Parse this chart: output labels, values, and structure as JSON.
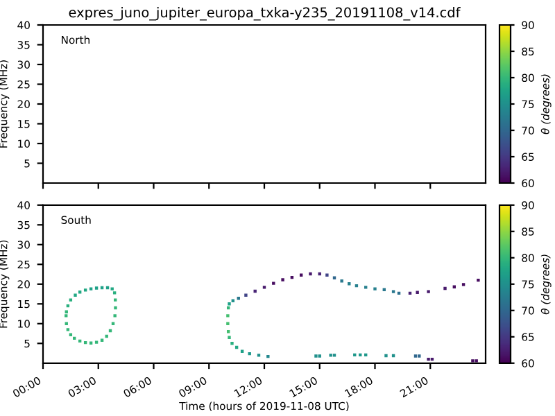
{
  "chart_data": [
    {
      "type": "scatter",
      "title": "expres_juno_jupiter_europa_txka-y235_20191108_v14.cdf",
      "ylabel": "Frequency (MHz)",
      "clabel": "θ (degrees)",
      "annotations": [
        "North"
      ],
      "grid": false,
      "legend": false,
      "tick_labels": "y",
      "xlim": [
        0,
        24
      ],
      "xticks": [
        {
          "value": 0,
          "label": null
        },
        {
          "value": 3,
          "label": null
        },
        {
          "value": 6,
          "label": null
        },
        {
          "value": 9,
          "label": null
        },
        {
          "value": 12,
          "label": null
        },
        {
          "value": 15,
          "label": null
        },
        {
          "value": 18,
          "label": null
        },
        {
          "value": 21,
          "label": null
        }
      ],
      "ylim": [
        0,
        40
      ],
      "yticks": [
        5,
        10,
        15,
        20,
        25,
        30,
        35,
        40
      ],
      "clim": [
        60,
        90
      ],
      "cticks": [
        60,
        65,
        70,
        75,
        80,
        85,
        90
      ]
    },
    {
      "type": "scatter",
      "xlabel": "Time (hours of 2019-11-08 UTC)",
      "ylabel": "Frequency (MHz)",
      "clabel": "θ (degrees)",
      "annotations": [
        "South"
      ],
      "marker": "square",
      "grid": false,
      "legend": false,
      "x": [
        1.25,
        1.27,
        1.35,
        1.5,
        1.7,
        2.0,
        2.3,
        2.6,
        2.9,
        3.2,
        3.45,
        3.65,
        3.8,
        3.9,
        3.93,
        3.92,
        3.88,
        3.75,
        3.5,
        3.2,
        2.9,
        2.6,
        2.3,
        2.0,
        1.75,
        1.5,
        1.35,
        1.27,
        10.1,
        10.05,
        10.02,
        10.02,
        10.05,
        10.1,
        10.25,
        10.5,
        10.8,
        11.2,
        11.7,
        12.2,
        10.3,
        10.6,
        11.0,
        11.5,
        12.0,
        12.5,
        13.0,
        13.5,
        14.0,
        14.5,
        15.0,
        15.4,
        15.8,
        16.2,
        16.6,
        17.0,
        17.5,
        18.0,
        18.5,
        19.0,
        19.3,
        19.9,
        20.3,
        20.9,
        21.8,
        22.3,
        22.8,
        23.6,
        14.8,
        15.0,
        15.6,
        15.8,
        16.9,
        17.2,
        17.5,
        18.6,
        19.0,
        20.2,
        20.4,
        20.9,
        21.1,
        23.3,
        23.5
      ],
      "values": [
        12,
        10,
        8.5,
        7.2,
        6.3,
        5.6,
        5.2,
        5.1,
        5.3,
        5.8,
        6.8,
        8.2,
        10,
        12,
        14,
        16,
        17.8,
        18.8,
        19.1,
        19.1,
        19.0,
        18.8,
        18.5,
        18.0,
        17.2,
        16,
        14.5,
        13,
        15,
        14,
        12,
        10,
        8,
        6.5,
        5,
        4,
        3,
        2.4,
        2.0,
        1.7,
        15.8,
        16.4,
        17.2,
        18.2,
        19.2,
        20.2,
        21.1,
        21.7,
        22.3,
        22.6,
        22.6,
        22.3,
        21.6,
        20.8,
        20.1,
        19.6,
        19.2,
        18.8,
        18.6,
        18.1,
        17.7,
        17.7,
        17.9,
        18.1,
        18.9,
        19.3,
        19.9,
        21.0,
        1.8,
        1.8,
        2.0,
        2.0,
        2.1,
        2.1,
        2.1,
        1.9,
        1.9,
        1.8,
        1.8,
        1.0,
        1.0,
        0.6,
        0.6
      ],
      "cvalues": [
        80,
        80,
        80,
        80,
        80,
        80,
        80,
        80,
        80,
        80,
        80,
        80,
        80,
        80,
        80,
        80,
        79,
        78,
        77,
        77,
        77,
        77,
        78,
        78,
        78,
        79,
        79,
        80,
        77,
        80,
        81,
        81,
        81,
        80,
        79,
        78,
        77,
        76,
        75,
        74,
        75,
        72,
        66,
        63,
        62,
        61,
        61,
        61,
        61,
        62,
        63,
        66,
        70,
        72,
        73,
        73,
        73,
        73,
        72,
        72,
        71,
        63,
        62,
        62,
        62,
        61,
        61,
        61,
        75,
        75,
        75,
        75,
        76,
        76,
        76,
        75,
        75,
        70,
        70,
        62,
        62,
        61,
        61
      ],
      "xlim": [
        0,
        24
      ],
      "xticks": [
        {
          "value": 0,
          "label": "00:00"
        },
        {
          "value": 3,
          "label": "03:00"
        },
        {
          "value": 6,
          "label": "06:00"
        },
        {
          "value": 9,
          "label": "09:00"
        },
        {
          "value": 12,
          "label": "12:00"
        },
        {
          "value": 15,
          "label": "15:00"
        },
        {
          "value": 18,
          "label": "18:00"
        },
        {
          "value": 21,
          "label": "21:00"
        }
      ],
      "ylim": [
        0,
        40
      ],
      "yticks": [
        5,
        10,
        15,
        20,
        25,
        30,
        35,
        40
      ],
      "clim": [
        60,
        90
      ],
      "cticks": [
        60,
        65,
        70,
        75,
        80,
        85,
        90
      ]
    }
  ]
}
